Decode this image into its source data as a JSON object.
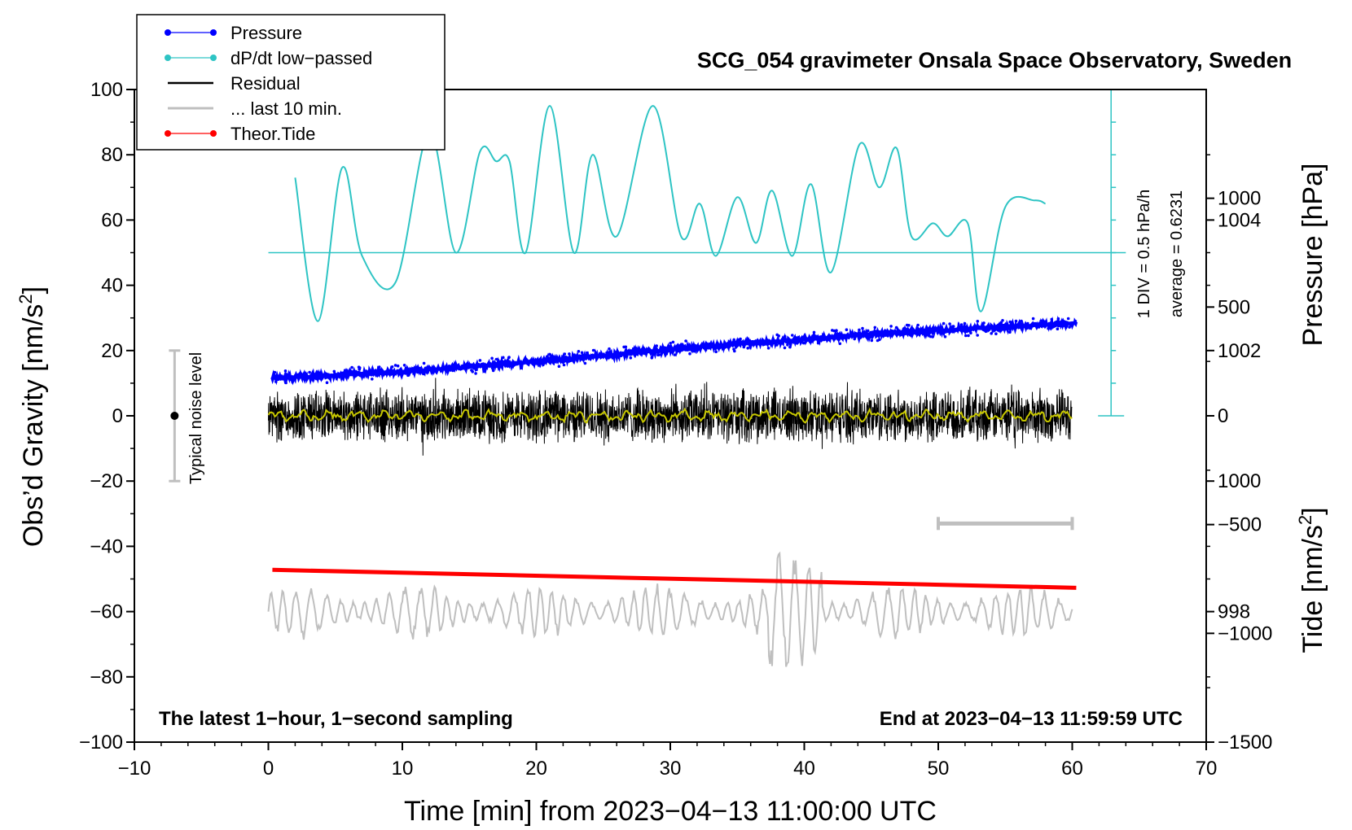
{
  "chart_data": {
    "type": "line",
    "title": "SCG_054 gravimeter Onsala Space Observatory, Sweden",
    "xlabel": "Time [min] from 2023−04−13 11:00:00 UTC",
    "ylabel_left_main": "Obs’d Gravity [nm/s",
    "ylabel_left_sup": "2",
    "ylabel_left_end": "]",
    "ylabel_right_pressure": "Pressure [hPa]",
    "ylabel_right_tide_main": "Tide [nm/s",
    "ylabel_right_tide_sup": "2",
    "ylabel_right_tide_end": "]",
    "xlim": [
      -10,
      70
    ],
    "ylim": [
      -100,
      100
    ],
    "pressure_lim": [
      996,
      1006
    ],
    "tide_lim": [
      -1500,
      1500
    ],
    "x_ticks": [
      "−10",
      "0",
      "10",
      "20",
      "30",
      "40",
      "50",
      "60",
      "70"
    ],
    "x_tick_values": [
      -10,
      0,
      10,
      20,
      30,
      40,
      50,
      60,
      70
    ],
    "y_ticks": [
      "100",
      "80",
      "60",
      "40",
      "20",
      "0",
      "−20",
      "−40",
      "−60",
      "−80",
      "−100"
    ],
    "y_tick_values": [
      100,
      80,
      60,
      40,
      20,
      0,
      -20,
      -40,
      -60,
      -80,
      -100
    ],
    "pressure_ticks": [
      "1004",
      "1002",
      "1000",
      "998"
    ],
    "pressure_tick_values": [
      1004,
      1002,
      1000,
      998
    ],
    "tide_ticks": [
      "1000",
      "500",
      "0",
      "−500",
      "−1000",
      "−1500"
    ],
    "tide_tick_values": [
      1000,
      500,
      0,
      -500,
      -1000,
      -1500
    ],
    "legend": [
      {
        "label": "Pressure",
        "color": "#0000ff",
        "marker": true
      },
      {
        "label": "dP/dt low−passed",
        "color": "#2ec4c4",
        "marker": true
      },
      {
        "label": "Residual",
        "color": "#000000",
        "marker": false
      },
      {
        "label": "... last 10 min.",
        "color": "#bfbfbf",
        "marker": false
      },
      {
        "label": "Theor.Tide",
        "color": "#ff0000",
        "marker": true
      }
    ],
    "annotations": {
      "bottom_left": "The latest 1−hour, 1−second sampling",
      "bottom_right": "End at 2023−04−13 11:59:59 UTC",
      "noise_label": "Typical noise level",
      "div_label": "1 DIV = 0.5 hPa/h",
      "average_label": "average = 0.6231"
    },
    "noise_bar": {
      "x": -7,
      "y": 0,
      "half_range": 20
    },
    "last10_bar": {
      "x_start": 50,
      "x_end": 60,
      "y": -33
    },
    "series": [
      {
        "name": "Pressure",
        "unit": "hPa",
        "color": "#0000ff",
        "x": [
          0.3,
          5,
          10,
          15,
          20,
          25,
          30,
          35,
          40,
          45,
          50,
          55,
          60.3
        ],
        "values": [
          1001.58,
          1001.62,
          1001.68,
          1001.75,
          1001.83,
          1001.92,
          1002.02,
          1002.1,
          1002.17,
          1002.25,
          1002.31,
          1002.36,
          1002.42
        ]
      },
      {
        "name": "dP/dt low−passed",
        "unit": "nm/s² plot scale",
        "color": "#2ec4c4",
        "baseline": 50,
        "x": [
          2,
          3.7,
          5.5,
          7,
          9.5,
          12,
          14,
          15.8,
          17,
          18,
          19.2,
          21,
          22.8,
          24.2,
          26,
          28.7,
          30.8,
          32.2,
          33.4,
          35,
          36.4,
          37.6,
          39.1,
          40.5,
          42,
          44.1,
          45.6,
          46.9,
          48,
          49.6,
          50.7,
          52.2,
          53.2,
          55,
          57.2,
          58
        ],
        "values": [
          73,
          29,
          76,
          49,
          41,
          87,
          50,
          81,
          78,
          78,
          50,
          95,
          50,
          80,
          55,
          95,
          55,
          65,
          49,
          67,
          53,
          69,
          49,
          71,
          44,
          83,
          70,
          82,
          55,
          59,
          55,
          59,
          32,
          64,
          66,
          65
        ]
      },
      {
        "name": "Residual",
        "unit": "nm/s²",
        "color": "#000000",
        "x_range": [
          0,
          60
        ],
        "amplitude": 9,
        "note": "1-second residual noise band around 0 with yellow smoothed trace"
      },
      {
        "name": "... last 10 min.",
        "unit": "nm/s²",
        "color": "#bfbfbf",
        "x_range": [
          0,
          60
        ],
        "center": -60,
        "amplitude": 6
      },
      {
        "name": "Theor.Tide",
        "unit": "nm/s²",
        "color": "#ff0000",
        "x": [
          0.3,
          60.3
        ],
        "values": [
          -47.2,
          -52.7
        ]
      }
    ]
  }
}
